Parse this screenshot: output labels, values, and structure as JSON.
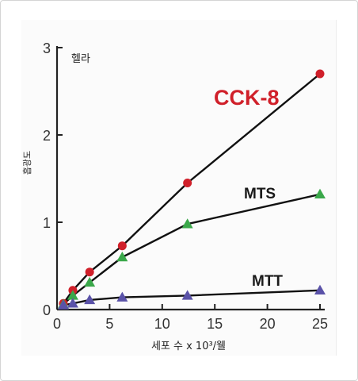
{
  "chart_data": {
    "type": "line",
    "title": "헬라",
    "xlabel": "세포 수 x 10³/웰",
    "ylabel": "흡광도",
    "xlim": [
      0,
      25
    ],
    "ylim": [
      0,
      3
    ],
    "xticks": [
      0,
      5,
      10,
      15,
      20,
      25
    ],
    "yticks": [
      0,
      1,
      2,
      3
    ],
    "grid": false,
    "legend": "inline labels",
    "series": [
      {
        "name": "CCK-8",
        "color": "#d0202a",
        "marker": "circle",
        "x": [
          0.6,
          1.5,
          3.1,
          6.2,
          12.4,
          25
        ],
        "y": [
          0.07,
          0.22,
          0.43,
          0.73,
          1.45,
          2.7
        ]
      },
      {
        "name": "MTS",
        "color": "#3aa84a",
        "marker": "triangle",
        "x": [
          0.6,
          1.5,
          3.1,
          6.2,
          12.4,
          25
        ],
        "y": [
          0.06,
          0.16,
          0.31,
          0.6,
          0.98,
          1.32
        ]
      },
      {
        "name": "MTT",
        "color": "#5a52a8",
        "marker": "triangle",
        "x": [
          0.6,
          1.5,
          3.1,
          6.2,
          12.4,
          25
        ],
        "y": [
          0.05,
          0.07,
          0.11,
          0.14,
          0.16,
          0.22
        ]
      }
    ]
  }
}
